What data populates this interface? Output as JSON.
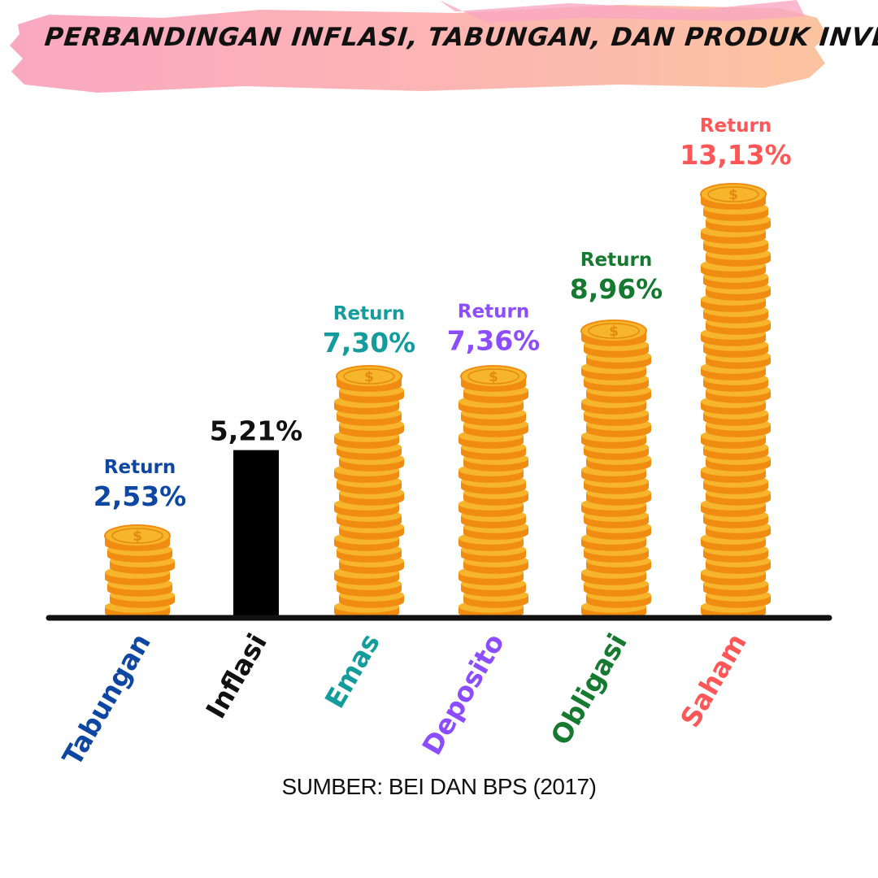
{
  "title": "PERBANDINGAN INFLASI, TABUNGAN, DAN PRODUK INVESTASI",
  "source": "SUMBER: BEI DAN BPS (2017)",
  "colors": {
    "banner_left": "#f9a8c2",
    "banner_right": "#fbc4a0",
    "axis": "#111111",
    "coin_face": "#f7b52c",
    "coin_edge": "#f08c12",
    "coin_symbol": "#e48a0e"
  },
  "chart_data": {
    "type": "bar",
    "style": "coin-stacks",
    "categories": [
      "Tabungan",
      "Inflasi",
      "Emas",
      "Deposito",
      "Obligasi",
      "Saham"
    ],
    "values": [
      2.53,
      5.21,
      7.3,
      7.36,
      8.96,
      13.13
    ],
    "value_labels": [
      "2,53%",
      "5,21%",
      "7,30%",
      "7,36%",
      "8,96%",
      "13,13%"
    ],
    "prefix_labels": [
      "Return",
      "",
      "Return",
      "Return",
      "Return",
      "Return"
    ],
    "category_colors": [
      "#0d47a1",
      "#111111",
      "#149c9c",
      "#8b4dff",
      "#157a2f",
      "#ff5757"
    ],
    "mark_type": [
      "coins",
      "bar",
      "coins",
      "coins",
      "coins",
      "coins"
    ],
    "bar_color": "#000000",
    "ylim": [
      0,
      13.13
    ],
    "grid": false,
    "legend": "none",
    "coin_icon": "dollar-coin-icon",
    "xlabel": "",
    "ylabel": ""
  }
}
